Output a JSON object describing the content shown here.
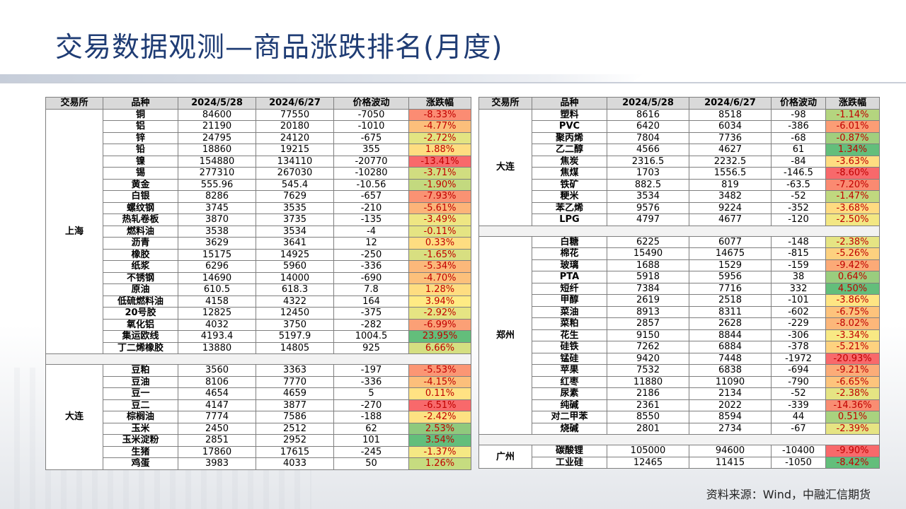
{
  "title": "交易数据观测—商品涨跌排名(月度)",
  "source": "资料来源：Wind，中融汇信期货",
  "headers": [
    "交易所",
    "品种",
    "2024/5/28",
    "2024/6/27",
    "价格波动",
    "涨跌幅"
  ],
  "left": {
    "groups": [
      {
        "exchange": "上海",
        "rows": [
          {
            "name": "铜",
            "p1": "84600",
            "p2": "77550",
            "diff": "-7050",
            "pct": "-8.33%",
            "color": "#fb8c73"
          },
          {
            "name": "铝",
            "p1": "21190",
            "p2": "20180",
            "diff": "-1010",
            "pct": "-4.77%",
            "color": "#fcbf7b"
          },
          {
            "name": "锌",
            "p1": "24795",
            "p2": "24120",
            "diff": "-675",
            "pct": "-2.72%",
            "color": "#e3e482"
          },
          {
            "name": "铅",
            "p1": "18860",
            "p2": "19215",
            "diff": "355",
            "pct": "1.88%",
            "color": "#fedd81"
          },
          {
            "name": "镍",
            "p1": "154880",
            "p2": "134110",
            "diff": "-20770",
            "pct": "-13.41%",
            "color": "#f8696b"
          },
          {
            "name": "锡",
            "p1": "277310",
            "p2": "267030",
            "diff": "-10280",
            "pct": "-3.71%",
            "color": "#d1dd80"
          },
          {
            "name": "黄金",
            "p1": "555.96",
            "p2": "545.4",
            "diff": "-10.56",
            "pct": "-1.90%",
            "color": "#c3d97f"
          },
          {
            "name": "白银",
            "p1": "8286",
            "p2": "7629",
            "diff": "-657",
            "pct": "-7.93%",
            "color": "#fa9273"
          },
          {
            "name": "螺纹钢",
            "p1": "3745",
            "p2": "3535",
            "diff": "-210",
            "pct": "-5.61%",
            "color": "#fcb479"
          },
          {
            "name": "热轧卷板",
            "p1": "3870",
            "p2": "3735",
            "diff": "-135",
            "pct": "-3.49%",
            "color": "#eee683"
          },
          {
            "name": "燃料油",
            "p1": "3538",
            "p2": "3534",
            "diff": "-4",
            "pct": "-0.11%",
            "color": "#e5e483"
          },
          {
            "name": "沥青",
            "p1": "3629",
            "p2": "3641",
            "diff": "12",
            "pct": "0.33%",
            "color": "#fedd81"
          },
          {
            "name": "橡胶",
            "p1": "15175",
            "p2": "14925",
            "diff": "-250",
            "pct": "-1.65%",
            "color": "#d8df81"
          },
          {
            "name": "纸浆",
            "p1": "6296",
            "p2": "5960",
            "diff": "-336",
            "pct": "-5.34%",
            "color": "#fcb87a"
          },
          {
            "name": "不锈钢",
            "p1": "14690",
            "p2": "14000",
            "diff": "-690",
            "pct": "-4.70%",
            "color": "#fcc07b"
          },
          {
            "name": "原油",
            "p1": "610.5",
            "p2": "618.3",
            "diff": "7.8",
            "pct": "1.28%",
            "color": "#fedd81"
          },
          {
            "name": "低硫燃料油",
            "p1": "4158",
            "p2": "4322",
            "diff": "164",
            "pct": "3.94%",
            "color": "#ffeb84"
          },
          {
            "name": "20号胶",
            "p1": "12825",
            "p2": "12450",
            "diff": "-375",
            "pct": "-2.92%",
            "color": "#e6e483"
          },
          {
            "name": "氧化铝",
            "p1": "4032",
            "p2": "3750",
            "diff": "-282",
            "pct": "-6.99%",
            "color": "#fba076"
          },
          {
            "name": "集运欧线",
            "p1": "4193.4",
            "p2": "5197.9",
            "diff": "1004.5",
            "pct": "23.95%",
            "color": "#63be7b"
          },
          {
            "name": "丁二烯橡胶",
            "p1": "13880",
            "p2": "14805",
            "diff": "925",
            "pct": "6.66%",
            "color": "#d5df81"
          }
        ]
      },
      {
        "exchange": "大连",
        "rows": [
          {
            "name": "豆粕",
            "p1": "3560",
            "p2": "3363",
            "diff": "-197",
            "pct": "-5.53%",
            "color": "#fb9674"
          },
          {
            "name": "豆油",
            "p1": "8106",
            "p2": "7770",
            "diff": "-336",
            "pct": "-4.15%",
            "color": "#fcbf7b"
          },
          {
            "name": "豆一",
            "p1": "4654",
            "p2": "4659",
            "diff": "5",
            "pct": "0.11%",
            "color": "#ffe283"
          },
          {
            "name": "豆二",
            "p1": "4147",
            "p2": "3877",
            "diff": "-270",
            "pct": "-6.51%",
            "color": "#f8696b"
          },
          {
            "name": "棕榈油",
            "p1": "7774",
            "p2": "7586",
            "diff": "-188",
            "pct": "-2.42%",
            "color": "#fde182"
          },
          {
            "name": "玉米",
            "p1": "2450",
            "p2": "2512",
            "diff": "62",
            "pct": "2.53%",
            "color": "#8fc97d"
          },
          {
            "name": "玉米淀粉",
            "p1": "2851",
            "p2": "2952",
            "diff": "101",
            "pct": "3.54%",
            "color": "#63be7b"
          },
          {
            "name": "生猪",
            "p1": "17860",
            "p2": "17615",
            "diff": "-245",
            "pct": "-1.37%",
            "color": "#f5e884"
          },
          {
            "name": "鸡蛋",
            "p1": "3983",
            "p2": "4033",
            "diff": "50",
            "pct": "1.26%",
            "color": "#c6dc80"
          }
        ]
      }
    ]
  },
  "right": {
    "groups": [
      {
        "exchange": "大连",
        "rows": [
          {
            "name": "塑料",
            "p1": "8616",
            "p2": "8518",
            "diff": "-98",
            "pct": "-1.14%",
            "color": "#b4d57f"
          },
          {
            "name": "PVC",
            "p1": "6420",
            "p2": "6034",
            "diff": "-386",
            "pct": "-6.01%",
            "color": "#fb9d75"
          },
          {
            "name": "聚丙烯",
            "p1": "7804",
            "p2": "7736",
            "diff": "-68",
            "pct": "-0.87%",
            "color": "#a1cf7e"
          },
          {
            "name": "乙二醇",
            "p1": "4566",
            "p2": "4627",
            "diff": "61",
            "pct": "1.34%",
            "color": "#63be7b"
          },
          {
            "name": "焦炭",
            "p1": "2316.5",
            "p2": "2232.5",
            "diff": "-84",
            "pct": "-3.63%",
            "color": "#fedd81"
          },
          {
            "name": "焦煤",
            "p1": "1703",
            "p2": "1556.5",
            "diff": "-146.5",
            "pct": "-8.60%",
            "color": "#f8696b"
          },
          {
            "name": "铁矿",
            "p1": "882.5",
            "p2": "819",
            "diff": "-63.5",
            "pct": "-7.20%",
            "color": "#fa8a71"
          },
          {
            "name": "粳米",
            "p1": "3534",
            "p2": "3482",
            "diff": "-52",
            "pct": "-1.47%",
            "color": "#c0d87f"
          },
          {
            "name": "苯乙烯",
            "p1": "9576",
            "p2": "9224",
            "diff": "-352",
            "pct": "-3.68%",
            "color": "#fedb81"
          },
          {
            "name": "LPG",
            "p1": "4797",
            "p2": "4677",
            "diff": "-120",
            "pct": "-2.50%",
            "color": "#f3e783"
          }
        ]
      },
      {
        "exchange": "郑州",
        "rows": [
          {
            "name": "白糖",
            "p1": "6225",
            "p2": "6077",
            "diff": "-148",
            "pct": "-2.38%",
            "color": "#e5e483"
          },
          {
            "name": "棉花",
            "p1": "15490",
            "p2": "14675",
            "diff": "-815",
            "pct": "-5.26%",
            "color": "#fdd17f"
          },
          {
            "name": "玻璃",
            "p1": "1688",
            "p2": "1529",
            "diff": "-159",
            "pct": "-9.42%",
            "color": "#fbaa77"
          },
          {
            "name": "PTA",
            "p1": "5918",
            "p2": "5956",
            "diff": "38",
            "pct": "0.64%",
            "color": "#9acd7e"
          },
          {
            "name": "短纤",
            "p1": "7384",
            "p2": "7716",
            "diff": "332",
            "pct": "4.50%",
            "color": "#63be7b"
          },
          {
            "name": "甲醇",
            "p1": "2619",
            "p2": "2518",
            "diff": "-101",
            "pct": "-3.86%",
            "color": "#fee583"
          },
          {
            "name": "菜油",
            "p1": "8913",
            "p2": "8311",
            "diff": "-602",
            "pct": "-6.75%",
            "color": "#fdc37c"
          },
          {
            "name": "菜粕",
            "p1": "2857",
            "p2": "2628",
            "diff": "-229",
            "pct": "-8.02%",
            "color": "#fcb77a"
          },
          {
            "name": "花生",
            "p1": "9150",
            "p2": "8844",
            "diff": "-306",
            "pct": "-3.34%",
            "color": "#f8e984"
          },
          {
            "name": "硅铁",
            "p1": "7262",
            "p2": "6884",
            "diff": "-378",
            "pct": "-5.21%",
            "color": "#fdd27f"
          },
          {
            "name": "锰硅",
            "p1": "9420",
            "p2": "7448",
            "diff": "-1972",
            "pct": "-20.93%",
            "color": "#f8696b"
          },
          {
            "name": "苹果",
            "p1": "7532",
            "p2": "6838",
            "diff": "-694",
            "pct": "-9.21%",
            "color": "#fbac78"
          },
          {
            "name": "红枣",
            "p1": "11880",
            "p2": "11090",
            "diff": "-790",
            "pct": "-6.65%",
            "color": "#fdc47c"
          },
          {
            "name": "尿素",
            "p1": "2186",
            "p2": "2134",
            "diff": "-52",
            "pct": "-2.38%",
            "color": "#e5e483"
          },
          {
            "name": "纯碱",
            "p1": "2361",
            "p2": "2022",
            "diff": "-339",
            "pct": "-14.36%",
            "color": "#f98d72"
          },
          {
            "name": "对二甲苯",
            "p1": "8550",
            "p2": "8594",
            "diff": "44",
            "pct": "0.51%",
            "color": "#a9d27f"
          },
          {
            "name": "烧碱",
            "p1": "2801",
            "p2": "2734",
            "diff": "-67",
            "pct": "-2.39%",
            "color": "#e6e483"
          }
        ]
      },
      {
        "exchange": "广州",
        "rows": [
          {
            "name": "碳酸锂",
            "p1": "105000",
            "p2": "94600",
            "diff": "-10400",
            "pct": "-9.90%",
            "color": "#f8696b"
          },
          {
            "name": "工业硅",
            "p1": "12465",
            "p2": "11415",
            "diff": "-1050",
            "pct": "-8.42%",
            "color": "#63be7b"
          }
        ]
      }
    ]
  }
}
